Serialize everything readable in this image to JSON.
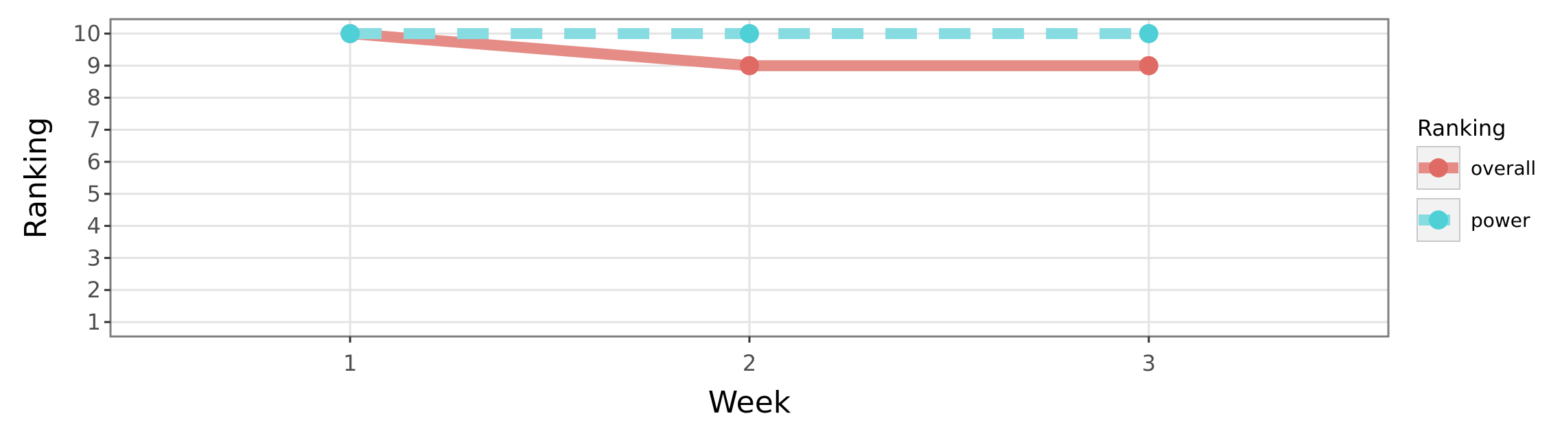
{
  "chart_data": {
    "type": "line",
    "xlabel": "Week",
    "ylabel": "Ranking",
    "x": [
      1,
      2,
      3
    ],
    "x_ticks": [
      "1",
      "2",
      "3"
    ],
    "xlim": [
      0.4,
      3.6
    ],
    "ylim": [
      10.45,
      0.55
    ],
    "y_ticks": [
      "1",
      "2",
      "3",
      "4",
      "5",
      "6",
      "7",
      "8",
      "9",
      "10"
    ],
    "y_reversed": true,
    "grid": true,
    "legend": {
      "title": "Ranking",
      "position": "right"
    },
    "series": [
      {
        "name": "overall",
        "values": [
          10,
          9,
          9
        ],
        "color": "#E06A64",
        "line_color": "#E58C86",
        "line_style": "solid"
      },
      {
        "name": "power",
        "values": [
          10,
          10,
          10
        ],
        "color": "#4FD0D6",
        "line_color": "#86DCE0",
        "line_style": "dashed"
      }
    ]
  }
}
